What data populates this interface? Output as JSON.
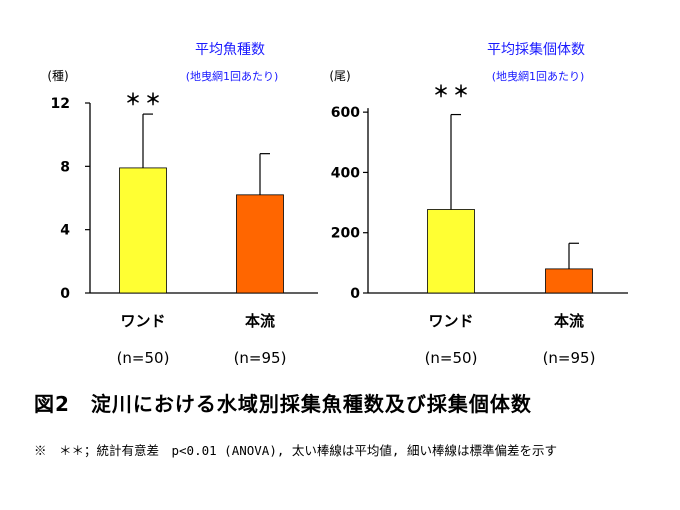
{
  "chart_data": [
    {
      "type": "bar",
      "title": "平均魚種数",
      "subtitle": "(地曳網1回あたり)",
      "ylabel": "(種)",
      "categories": [
        "ワンド",
        "本流"
      ],
      "sample_sizes": [
        "(n=50)",
        "(n=95)"
      ],
      "values": [
        7.9,
        6.2
      ],
      "errors": [
        3.4,
        2.6
      ],
      "significance": [
        "＊＊",
        ""
      ],
      "ylim": [
        0,
        12
      ],
      "yticks": [
        0,
        4,
        8,
        12
      ],
      "bar_colors": [
        "#ffff33",
        "#ff6600"
      ]
    },
    {
      "type": "bar",
      "title": "平均採集個体数",
      "subtitle": "(地曳網1回あたり)",
      "ylabel": "(尾)",
      "categories": [
        "ワンド",
        "本流"
      ],
      "sample_sizes": [
        "(n=50)",
        "(n=95)"
      ],
      "values": [
        277,
        80
      ],
      "errors": [
        315,
        85
      ],
      "significance": [
        "＊＊",
        ""
      ],
      "ylim": [
        0,
        700
      ],
      "yticks": [
        0,
        200,
        400,
        600
      ],
      "bar_colors": [
        "#ffff33",
        "#ff6600"
      ]
    }
  ],
  "caption": "図2　淀川における水域別採集魚種数及び採集個体数",
  "footnote": "※　＊＊；統計有意差　p<0.01 (ANOVA), 太い棒線は平均値, 細い棒線は標準偏差を示す"
}
